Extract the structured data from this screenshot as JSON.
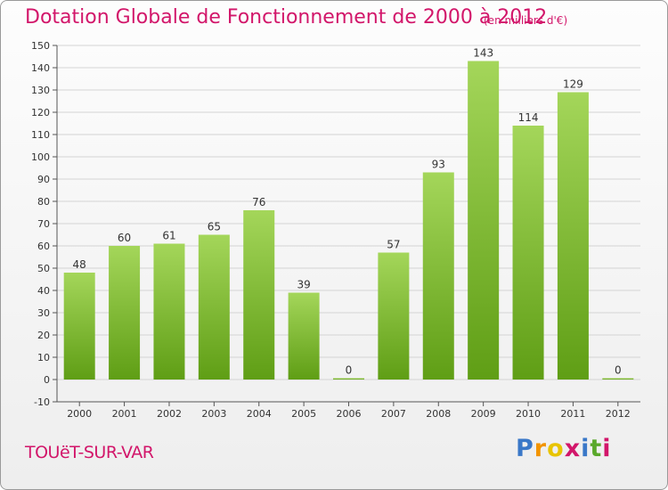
{
  "header": {
    "title": "Dotation Globale de Fonctionnement de 2000 à 2012",
    "subtitle": "(en milliers d'€)"
  },
  "footer": {
    "commune": "TOUëT-SUR-VAR",
    "logo_letters": [
      "P",
      "r",
      "o",
      "x",
      "i",
      "t",
      "i"
    ],
    "logo_colors": [
      "#3a78c8",
      "#f29400",
      "#e8c400",
      "#d2166a",
      "#3a78c8",
      "#5aa82b",
      "#d2166a"
    ]
  },
  "colors": {
    "bar_top": "#a4d65a",
    "bar_bottom": "#5f9e15",
    "grid": "#d4d4d4",
    "axis": "#555555",
    "text": "#333333",
    "accent": "#d2166a"
  },
  "chart_data": {
    "type": "bar",
    "title": "Dotation Globale de Fonctionnement de 2000 à 2012",
    "subtitle": "(en milliers d'€)",
    "xlabel": "",
    "ylabel": "",
    "categories": [
      "2000",
      "2001",
      "2002",
      "2003",
      "2004",
      "2005",
      "2006",
      "2007",
      "2008",
      "2009",
      "2010",
      "2011",
      "2012"
    ],
    "values": [
      48,
      60,
      61,
      65,
      76,
      39,
      0,
      57,
      93,
      143,
      114,
      129,
      0
    ],
    "ylim": [
      -10,
      150
    ],
    "yticks": [
      -10,
      0,
      10,
      20,
      30,
      40,
      50,
      60,
      70,
      80,
      90,
      100,
      110,
      120,
      130,
      140,
      150
    ],
    "grid": true,
    "legend": "none"
  }
}
